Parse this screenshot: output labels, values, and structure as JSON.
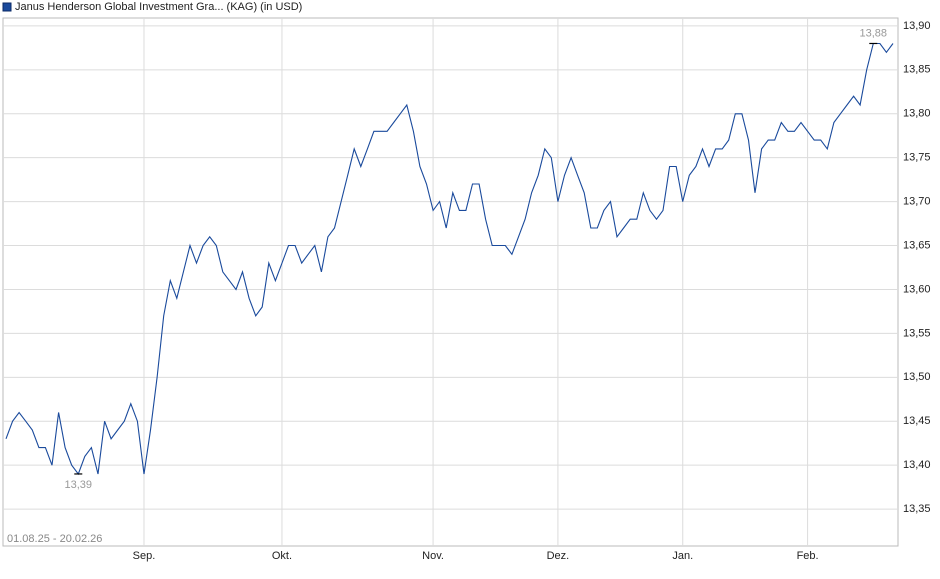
{
  "chart_data": {
    "type": "line",
    "title": "Janus Henderson Global Investment Gra... (KAG) (in USD)",
    "subtitle": "01.08.25 - 20.02.26",
    "series": [
      {
        "name": "Janus Henderson Global Investment Gra... (KAG) (in USD)",
        "color": "#1a4a9c",
        "values": [
          13.43,
          13.45,
          13.46,
          13.45,
          13.44,
          13.42,
          13.42,
          13.4,
          13.46,
          13.42,
          13.4,
          13.39,
          13.41,
          13.42,
          13.39,
          13.45,
          13.43,
          13.44,
          13.45,
          13.47,
          13.45,
          13.39,
          13.44,
          13.5,
          13.57,
          13.61,
          13.59,
          13.62,
          13.65,
          13.63,
          13.65,
          13.66,
          13.65,
          13.62,
          13.61,
          13.6,
          13.62,
          13.59,
          13.57,
          13.58,
          13.63,
          13.61,
          13.63,
          13.65,
          13.65,
          13.63,
          13.64,
          13.65,
          13.62,
          13.66,
          13.67,
          13.7,
          13.73,
          13.76,
          13.74,
          13.76,
          13.78,
          13.78,
          13.78,
          13.79,
          13.8,
          13.81,
          13.78,
          13.74,
          13.72,
          13.69,
          13.7,
          13.67,
          13.71,
          13.69,
          13.69,
          13.72,
          13.72,
          13.68,
          13.65,
          13.65,
          13.65,
          13.64,
          13.66,
          13.68,
          13.71,
          13.73,
          13.76,
          13.75,
          13.7,
          13.73,
          13.75,
          13.73,
          13.71,
          13.67,
          13.67,
          13.69,
          13.7,
          13.66,
          13.67,
          13.68,
          13.68,
          13.71,
          13.69,
          13.68,
          13.69,
          13.74,
          13.74,
          13.7,
          13.73,
          13.74,
          13.76,
          13.74,
          13.76,
          13.76,
          13.77,
          13.8,
          13.8,
          13.77,
          13.71,
          13.76,
          13.77,
          13.77,
          13.79,
          13.78,
          13.78,
          13.79,
          13.78,
          13.77,
          13.77,
          13.76,
          13.79,
          13.8,
          13.81,
          13.82,
          13.81,
          13.85,
          13.88,
          13.88,
          13.87,
          13.88
        ]
      }
    ],
    "annotations": [
      {
        "text": "13,39",
        "value": 13.39
      },
      {
        "text": "13,88",
        "value": 13.88
      }
    ],
    "xlim": [
      0,
      135
    ],
    "xticks": [
      {
        "value": 21,
        "label": "Sep."
      },
      {
        "value": 42,
        "label": "Okt."
      },
      {
        "value": 65,
        "label": "Nov."
      },
      {
        "value": 84,
        "label": "Dez."
      },
      {
        "value": 103,
        "label": "Jan."
      },
      {
        "value": 122,
        "label": "Feb."
      }
    ],
    "ylim": [
      13.308,
      13.909
    ],
    "yticks": [
      {
        "value": 13.35,
        "label": "13,35"
      },
      {
        "value": 13.4,
        "label": "13,40"
      },
      {
        "value": 13.45,
        "label": "13,45"
      },
      {
        "value": 13.5,
        "label": "13,50"
      },
      {
        "value": 13.55,
        "label": "13,55"
      },
      {
        "value": 13.6,
        "label": "13,60"
      },
      {
        "value": 13.65,
        "label": "13,65"
      },
      {
        "value": 13.7,
        "label": "13,70"
      },
      {
        "value": 13.75,
        "label": "13,75"
      },
      {
        "value": 13.8,
        "label": "13,80"
      },
      {
        "value": 13.85,
        "label": "13,85"
      },
      {
        "value": 13.9,
        "label": "13,90"
      }
    ],
    "grid": true
  }
}
